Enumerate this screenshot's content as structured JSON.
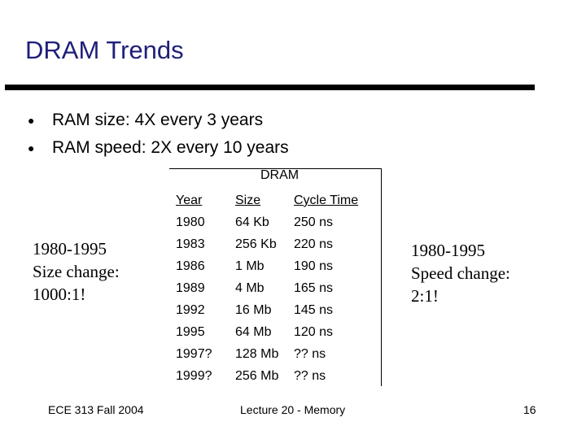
{
  "slide": {
    "title": "DRAM Trends",
    "bullets": [
      "RAM size: 4X every 3 years",
      "RAM speed: 2X every 10 years"
    ],
    "bullet_glyph": "”"
  },
  "table": {
    "caption": "DRAM",
    "headers": [
      "Year",
      "Size",
      "Cycle Time"
    ],
    "years": [
      "1980",
      "1983",
      "1986",
      "1989",
      "1992",
      "1995",
      "1997?",
      "1999?"
    ],
    "sizes": [
      "64 Kb",
      "256 Kb",
      "1 Mb",
      "4 Mb",
      "16 Mb",
      "64 Mb",
      "128 Mb",
      "256 Mb"
    ],
    "cycles": [
      "250 ns",
      "220 ns",
      "190 ns",
      "165 ns",
      "145 ns",
      "120 ns",
      "?? ns",
      "?? ns"
    ]
  },
  "notes": {
    "left": [
      "1980-1995",
      "Size change:",
      "1000:1!"
    ],
    "right": [
      "1980-1995",
      "Speed change:",
      "2:1!"
    ]
  },
  "footer": {
    "course": "ECE 313 Fall 2004",
    "lecture": "Lecture 20 - Memory",
    "page": "16"
  }
}
